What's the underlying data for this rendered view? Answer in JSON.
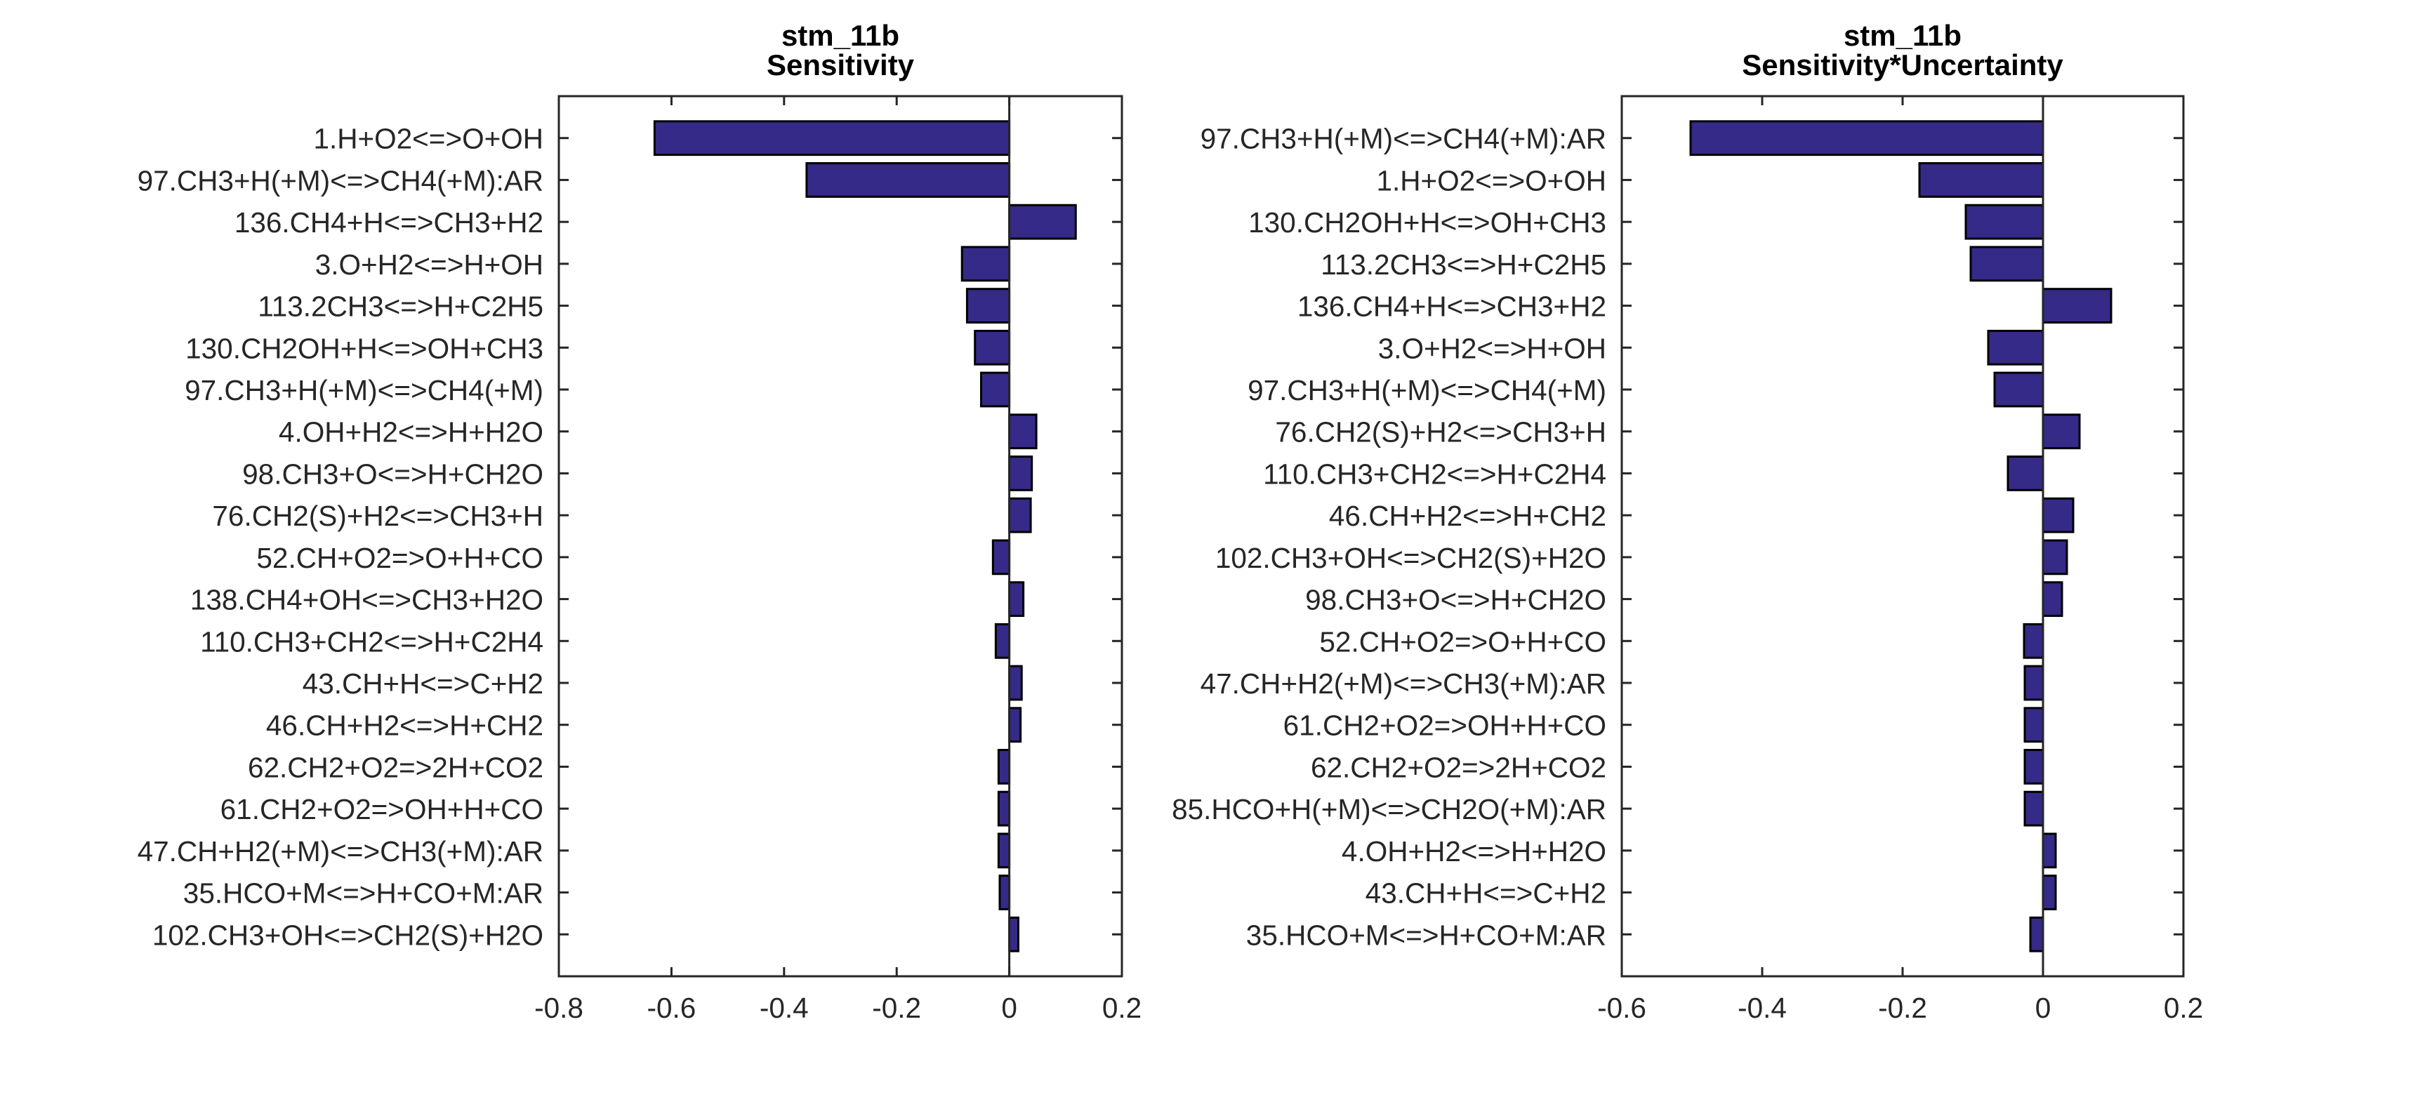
{
  "chart_data": [
    {
      "type": "bar",
      "orientation": "horizontal",
      "title": [
        "stm_11b",
        "Sensitivity"
      ],
      "xlabel": "",
      "ylabel": "",
      "xlim": [
        -0.8,
        0.2
      ],
      "xticks": [
        "-0.8",
        "-0.6",
        "-0.4",
        "-0.2",
        "0",
        "0.2"
      ],
      "xtick_values": [
        -0.8,
        -0.6,
        -0.4,
        -0.2,
        0,
        0.2
      ],
      "grid": false,
      "bar_color": "#352a87",
      "edge_color": "#000000",
      "categories": [
        "1.H+O2<=>O+OH",
        "97.CH3+H(+M)<=>CH4(+M):AR",
        "136.CH4+H<=>CH3+H2",
        "3.O+H2<=>H+OH",
        "113.2CH3<=>H+C2H5",
        "130.CH2OH+H<=>OH+CH3",
        "97.CH3+H(+M)<=>CH4(+M)",
        "4.OH+H2<=>H+H2O",
        "98.CH3+O<=>H+CH2O",
        "76.CH2(S)+H2<=>CH3+H",
        "52.CH+O2=>O+H+CO",
        "138.CH4+OH<=>CH3+H2O",
        "110.CH3+CH2<=>H+C2H4",
        "43.CH+H<=>C+H2",
        "46.CH+H2<=>H+CH2",
        "62.CH2+O2=>2H+CO2",
        "61.CH2+O2=>OH+H+CO",
        "47.CH+H2(+M)<=>CH3(+M):AR",
        "35.HCO+M<=>H+CO+M:AR",
        "102.CH3+OH<=>CH2(S)+H2O"
      ],
      "values": [
        -0.63,
        -0.36,
        0.118,
        -0.084,
        -0.075,
        -0.061,
        -0.05,
        0.048,
        0.04,
        0.038,
        -0.029,
        0.025,
        -0.024,
        0.022,
        0.02,
        -0.019,
        -0.019,
        -0.019,
        -0.017,
        0.016
      ]
    },
    {
      "type": "bar",
      "orientation": "horizontal",
      "title": [
        "stm_11b",
        "Sensitivity*Uncertainty"
      ],
      "xlabel": "",
      "ylabel": "",
      "xlim": [
        -0.6,
        0.2
      ],
      "xticks": [
        "-0.6",
        "-0.4",
        "-0.2",
        "0",
        "0.2"
      ],
      "xtick_values": [
        -0.6,
        -0.4,
        -0.2,
        0,
        0.2
      ],
      "grid": false,
      "bar_color": "#352a87",
      "edge_color": "#000000",
      "categories": [
        "97.CH3+H(+M)<=>CH4(+M):AR",
        "1.H+O2<=>O+OH",
        "130.CH2OH+H<=>OH+CH3",
        "113.2CH3<=>H+C2H5",
        "136.CH4+H<=>CH3+H2",
        "3.O+H2<=>H+OH",
        "97.CH3+H(+M)<=>CH4(+M)",
        "76.CH2(S)+H2<=>CH3+H",
        "110.CH3+CH2<=>H+C2H4",
        "46.CH+H2<=>H+CH2",
        "102.CH3+OH<=>CH2(S)+H2O",
        "98.CH3+O<=>H+CH2O",
        "52.CH+O2=>O+H+CO",
        "47.CH+H2(+M)<=>CH3(+M):AR",
        "61.CH2+O2=>OH+H+CO",
        "62.CH2+O2=>2H+CO2",
        "85.HCO+H(+M)<=>CH2O(+M):AR",
        "4.OH+H2<=>H+H2O",
        "43.CH+H<=>C+H2",
        "35.HCO+M<=>H+CO+M:AR"
      ],
      "values": [
        -0.502,
        -0.176,
        -0.11,
        -0.103,
        0.097,
        -0.078,
        -0.069,
        0.052,
        -0.05,
        0.043,
        0.034,
        0.027,
        -0.027,
        -0.026,
        -0.026,
        -0.026,
        -0.026,
        0.018,
        0.018,
        -0.018
      ]
    }
  ]
}
